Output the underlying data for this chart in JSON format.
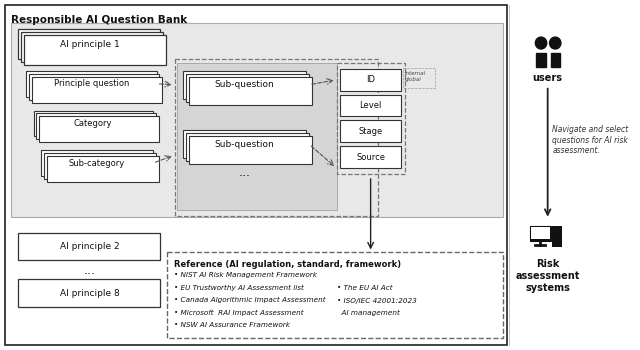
{
  "title": "Responsible AI Question Bank",
  "ref_title": "Reference (AI regulation, standard, framework)",
  "ref_items_left": [
    "• NIST AI Risk Management Framework",
    "• EU Trustworthy AI Assessment list",
    "• Canada Algorithmic Impact Assessment",
    "• Microsoft  RAI Impact Assessment",
    "• NSW AI Assurance Framework"
  ],
  "ref_items_right": [
    "• The EU AI Act",
    "• ISO/IEC 42001:2023",
    "  AI management"
  ],
  "internal_global_label": "internal\nglobal",
  "users_label": "users",
  "risk_label": "Risk\nassessment\nsystems",
  "nav_text": "Navigate and select\nquestions for AI risk\nassessment.",
  "bg_color": "#ffffff",
  "box_fill": "#ffffff",
  "gray_fill": "#e0e0e0",
  "inner_gray_fill": "#cccccc",
  "border_color": "#222222",
  "dashed_color": "#666666",
  "text_color": "#111111"
}
